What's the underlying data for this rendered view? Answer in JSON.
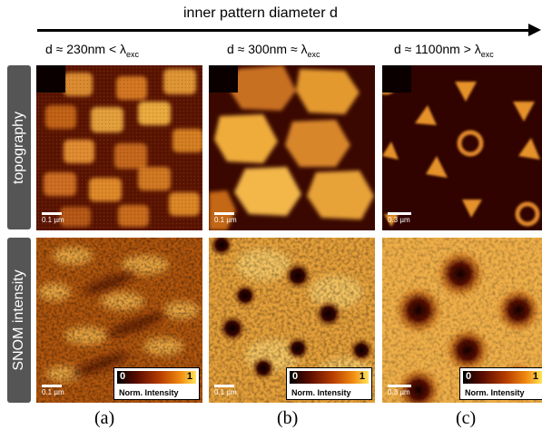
{
  "header": {
    "arrow_label": "inner pattern diameter d"
  },
  "columns": [
    {
      "head_main": "d ≈ 230nm < λ",
      "head_sub": "exc",
      "caption": "(a)",
      "scale_topo": "0.1 µm",
      "scale_snom": "0.1 µm"
    },
    {
      "head_main": "d ≈ 300nm ≈ λ",
      "head_sub": "exc",
      "caption": "(b)",
      "scale_topo": "0.1 µm",
      "scale_snom": "0.1 µm"
    },
    {
      "head_main": "d ≈ 1100nm > λ",
      "head_sub": "exc",
      "caption": "(c)",
      "scale_topo": "0.3 µm",
      "scale_snom": "0.3 µm"
    }
  ],
  "rows": {
    "topography": "topography",
    "snom": "SNOM intensity"
  },
  "legend": {
    "min": "0",
    "max": "1",
    "caption": "Norm. Intensity"
  },
  "colors": {
    "dark": "#2a0500",
    "mid": "#a83a00",
    "bright": "#f7b844",
    "label_bg": "#555555"
  }
}
